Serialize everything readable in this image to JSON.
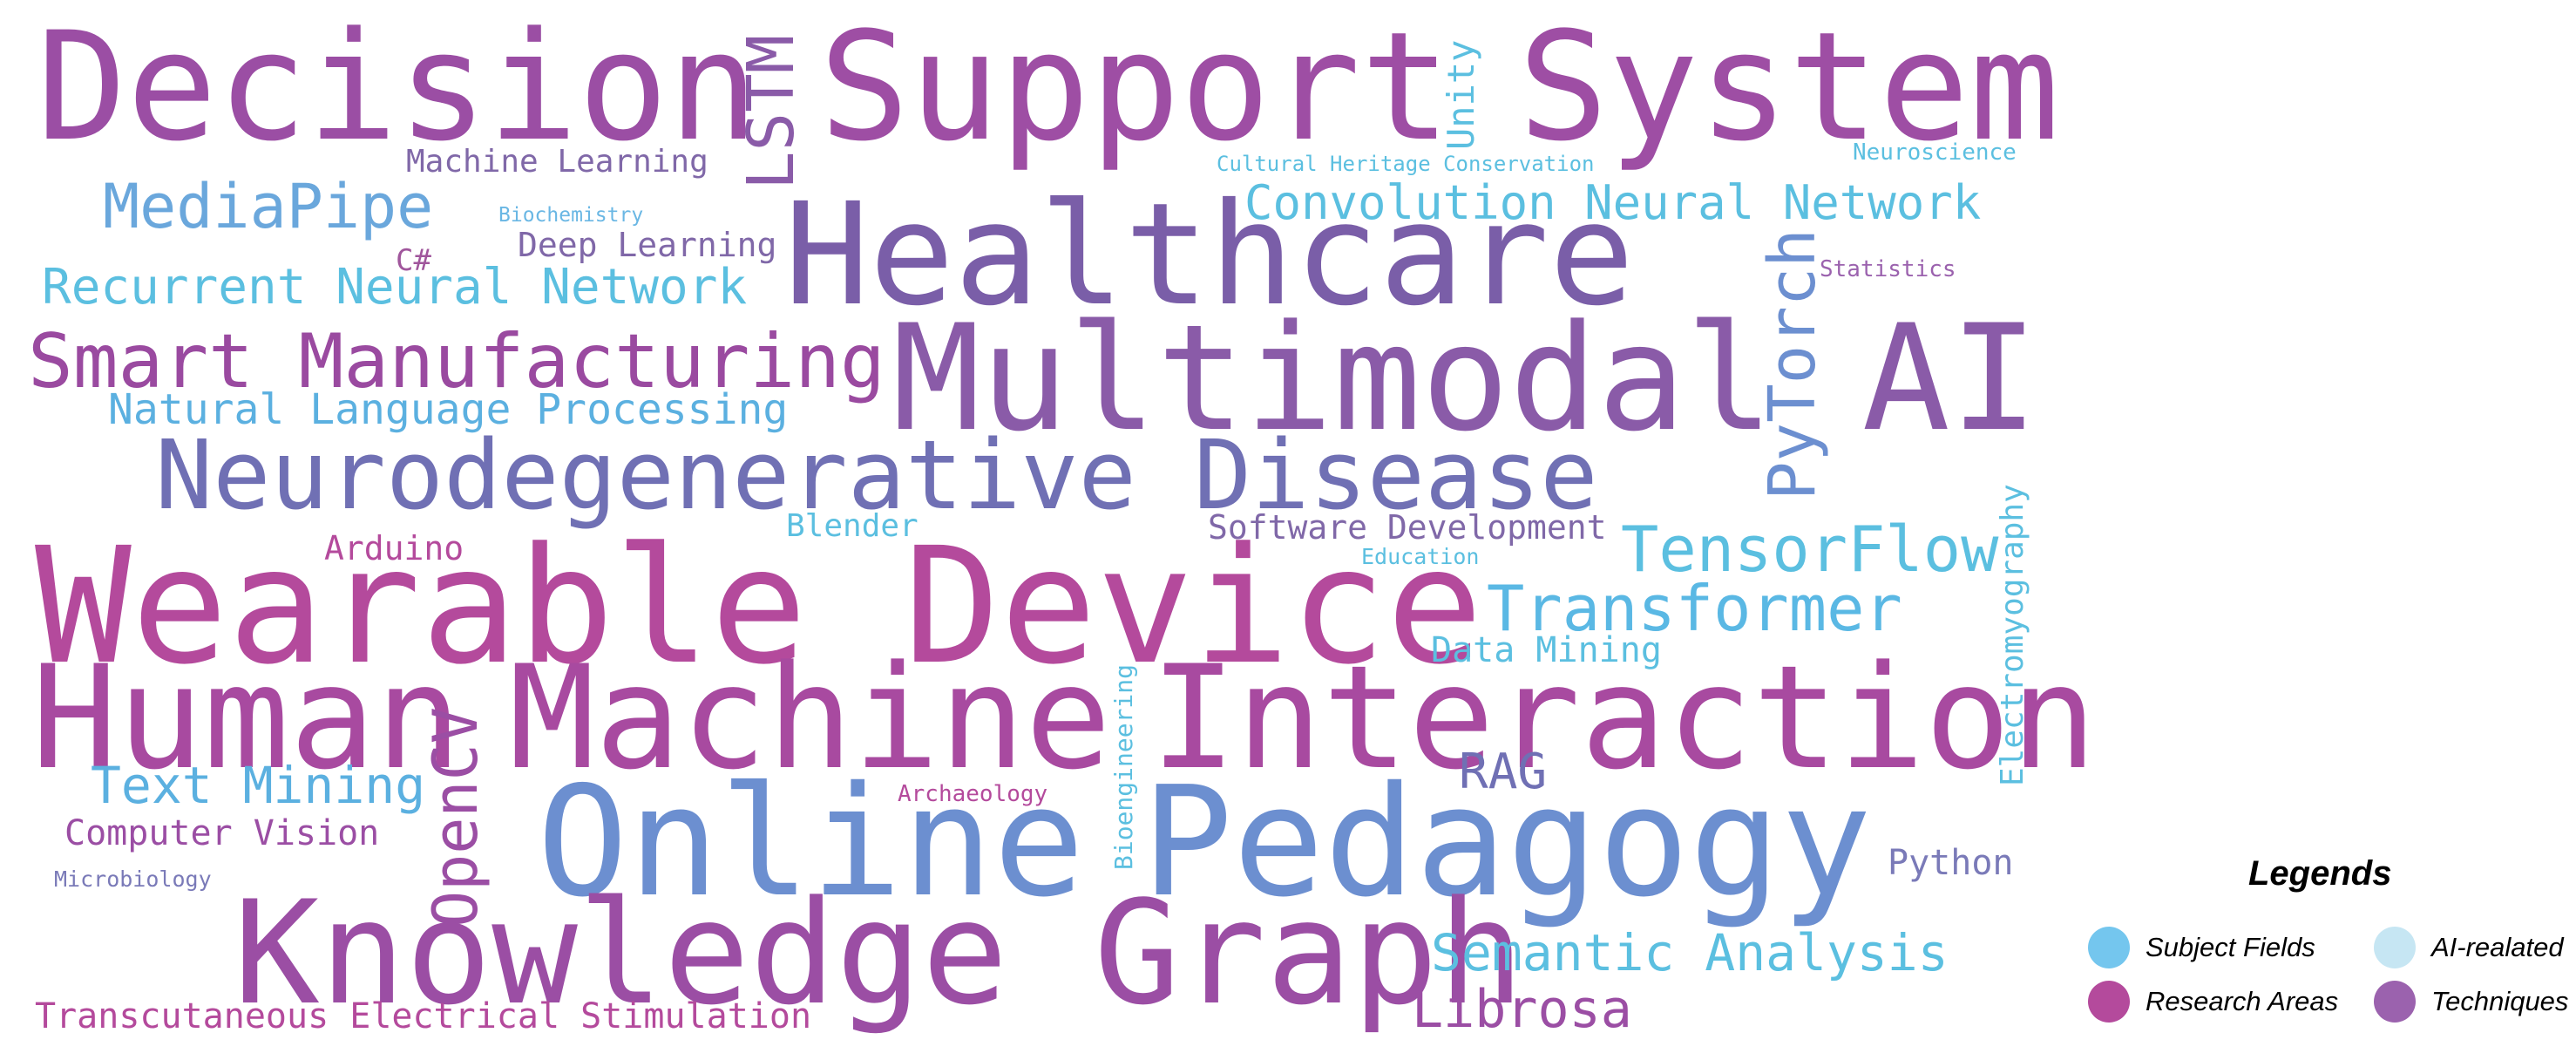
{
  "colors": {
    "subject_fields": "#74c6ee",
    "research_areas": "#b44a9c",
    "ai_related": "#c6e6f3",
    "techniques": "#9b62ae"
  },
  "words": [
    {
      "text": "Decision",
      "color": "#9b4ea4"
    },
    {
      "text": "Support",
      "color": "#9e4ea4"
    },
    {
      "text": "System",
      "color": "#9e4ea4"
    },
    {
      "text": "LSTM",
      "color": "#8a5ba8"
    },
    {
      "text": "Unity",
      "color": "#5bbfe0"
    },
    {
      "text": "Machine Learning",
      "color": "#8068a8"
    },
    {
      "text": "Cultural Heritage Conservation",
      "color": "#5bbfe0"
    },
    {
      "text": "Neuroscience",
      "color": "#5bbfe0"
    },
    {
      "text": "MediaPipe",
      "color": "#6aa7dc"
    },
    {
      "text": "Biochemistry",
      "color": "#6ab7e4"
    },
    {
      "text": "Healthcare",
      "color": "#7a5ea8"
    },
    {
      "text": "Convolution Neural Network",
      "color": "#5bbfe0"
    },
    {
      "text": "C#",
      "color": "#a0569c"
    },
    {
      "text": "Deep Learning",
      "color": "#8068a8"
    },
    {
      "text": "PyTorch",
      "color": "#6c8fd0"
    },
    {
      "text": "Statistics",
      "color": "#9b62ae"
    },
    {
      "text": "Recurrent Neural Network",
      "color": "#5bbfe0"
    },
    {
      "text": "Smart Manufacturing",
      "color": "#9a4aa0"
    },
    {
      "text": "Multimodal AI",
      "color": "#8a5ba8"
    },
    {
      "text": "Natural Language Processing",
      "color": "#5bb0e0"
    },
    {
      "text": "Neurodegenerative Disease",
      "color": "#7070b4"
    },
    {
      "text": "Electromyography",
      "color": "#5bbfe0"
    },
    {
      "text": "Arduino",
      "color": "#b44a9c"
    },
    {
      "text": "Blender",
      "color": "#5bbfe0"
    },
    {
      "text": "Software Development",
      "color": "#8068a8"
    },
    {
      "text": "TensorFlow",
      "color": "#5bbfe0"
    },
    {
      "text": "Education",
      "color": "#5bbfe0"
    },
    {
      "text": "Wearable Device",
      "color": "#b44a9c"
    },
    {
      "text": "Transformer",
      "color": "#5ab8e4"
    },
    {
      "text": "Data Mining",
      "color": "#5bbfe0"
    },
    {
      "text": "Human",
      "color": "#a84aa0"
    },
    {
      "text": "Machine",
      "color": "#a84aa0"
    },
    {
      "text": "Interaction",
      "color": "#a84aa0"
    },
    {
      "text": "OpenCV",
      "color": "#9b4ea4"
    },
    {
      "text": "Bioengineering",
      "color": "#5bbfe0"
    },
    {
      "text": "RAG",
      "color": "#7070b4"
    },
    {
      "text": "Text Mining",
      "color": "#5bb0e0"
    },
    {
      "text": "Archaeology",
      "color": "#b44a9c"
    },
    {
      "text": "Online",
      "color": "#6c8fd0"
    },
    {
      "text": "Pedagogy",
      "color": "#6c8fd0"
    },
    {
      "text": "Computer Vision",
      "color": "#9b4ea4"
    },
    {
      "text": "Python",
      "color": "#7a7ab8"
    },
    {
      "text": "Microbiology",
      "color": "#7a7ab8"
    },
    {
      "text": "Knowledge Graph",
      "color": "#9b4ea4"
    },
    {
      "text": "Semantic Analysis",
      "color": "#5bbfe0"
    },
    {
      "text": "Transcutaneous Electrical Stimulation",
      "color": "#b44a9c"
    },
    {
      "text": "Librosa",
      "color": "#9b4ea4"
    }
  ],
  "legend": {
    "title": "Legends",
    "items": [
      {
        "label": "Subject Fields",
        "color": "#74c6ee"
      },
      {
        "label": "AI-realated",
        "color": "#c6e6f3"
      },
      {
        "label": "Research Areas",
        "color": "#b44a9c"
      },
      {
        "label": "Techniques",
        "color": "#9b62ae"
      }
    ]
  }
}
